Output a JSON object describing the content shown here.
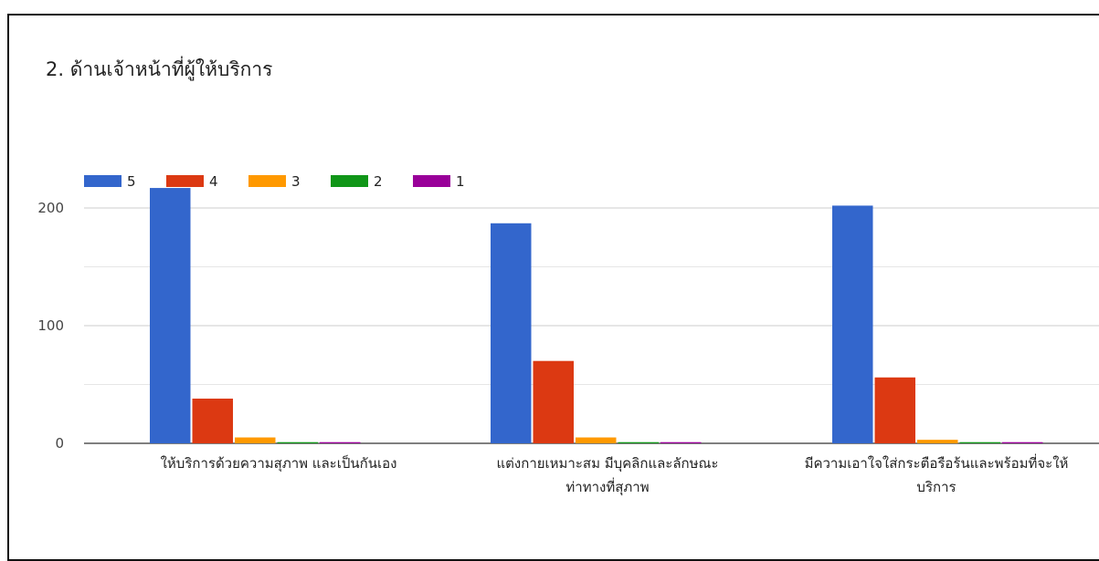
{
  "chart_data": {
    "type": "bar",
    "title": "2.  ด้านเจ้าหน้าที่ผู้ให้บริการ",
    "categories": [
      [
        "ให้บริการด้วยความสุภาพ และเป็นกันเอง"
      ],
      [
        "แต่งกายเหมาะสม มีบุคลิกและลักษณะ",
        "ท่าทางที่สุภาพ"
      ],
      [
        "มีความเอาใจใส่กระตือรือร้นและพร้อมที่จะให้",
        "บริการ"
      ]
    ],
    "series": [
      {
        "name": "5",
        "color": "#3366cc",
        "values": [
          217,
          187,
          202
        ]
      },
      {
        "name": "4",
        "color": "#dc3912",
        "values": [
          38,
          70,
          56
        ]
      },
      {
        "name": "3",
        "color": "#ff9900",
        "values": [
          5,
          5,
          3
        ]
      },
      {
        "name": "2",
        "color": "#109618",
        "values": [
          1,
          1,
          1
        ]
      },
      {
        "name": "1",
        "color": "#990099",
        "values": [
          1,
          1,
          1
        ]
      }
    ],
    "yticks": [
      "0",
      "100",
      "200"
    ],
    "ylim": [
      0,
      240
    ],
    "grid": true,
    "legend": "top-left"
  }
}
